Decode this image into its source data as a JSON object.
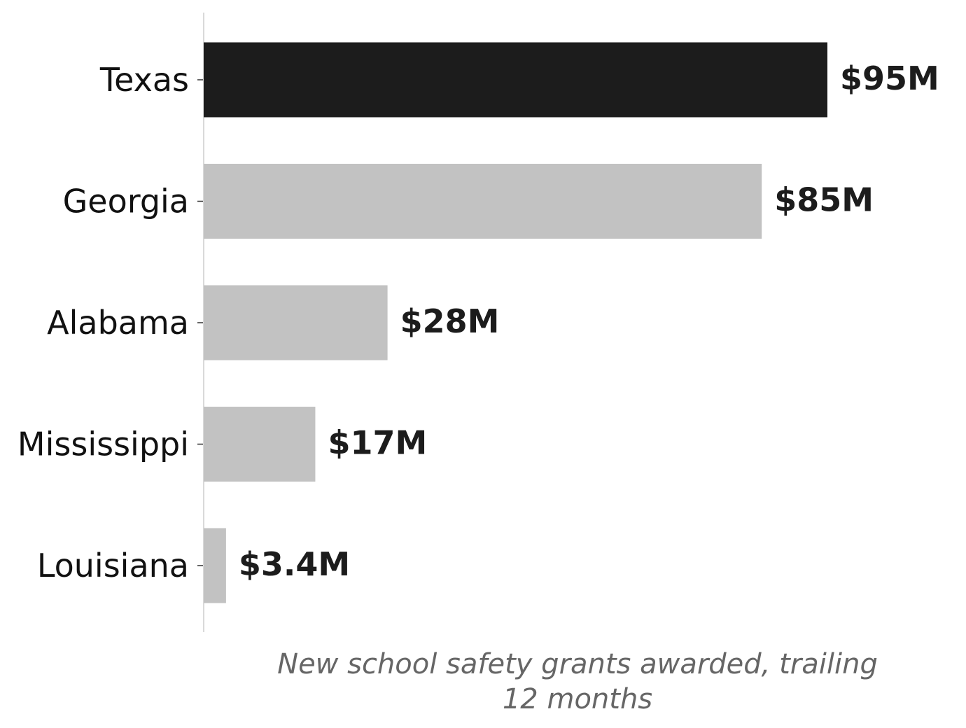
{
  "chart_data": {
    "type": "bar",
    "orientation": "horizontal",
    "categories": [
      "Texas",
      "Georgia",
      "Alabama",
      "Mississippi",
      "Louisiana"
    ],
    "values": [
      95,
      85,
      28,
      17,
      3.4
    ],
    "value_labels": [
      "$95M",
      "$85M",
      "$28M",
      "$17M",
      "$3.4M"
    ],
    "highlight_index": 0,
    "xlabel_lines": [
      "New school safety grants awarded, trailing",
      "12 months"
    ],
    "ylabel": "",
    "title": "",
    "xlim": [
      0,
      95
    ],
    "grid": false,
    "legend": "none",
    "colors": {
      "highlight": "#1c1c1c",
      "default": "#c2c2c2",
      "axis": "#d9d9d9",
      "value_text": "#1c1c1c",
      "axis_title": "#666666"
    }
  }
}
